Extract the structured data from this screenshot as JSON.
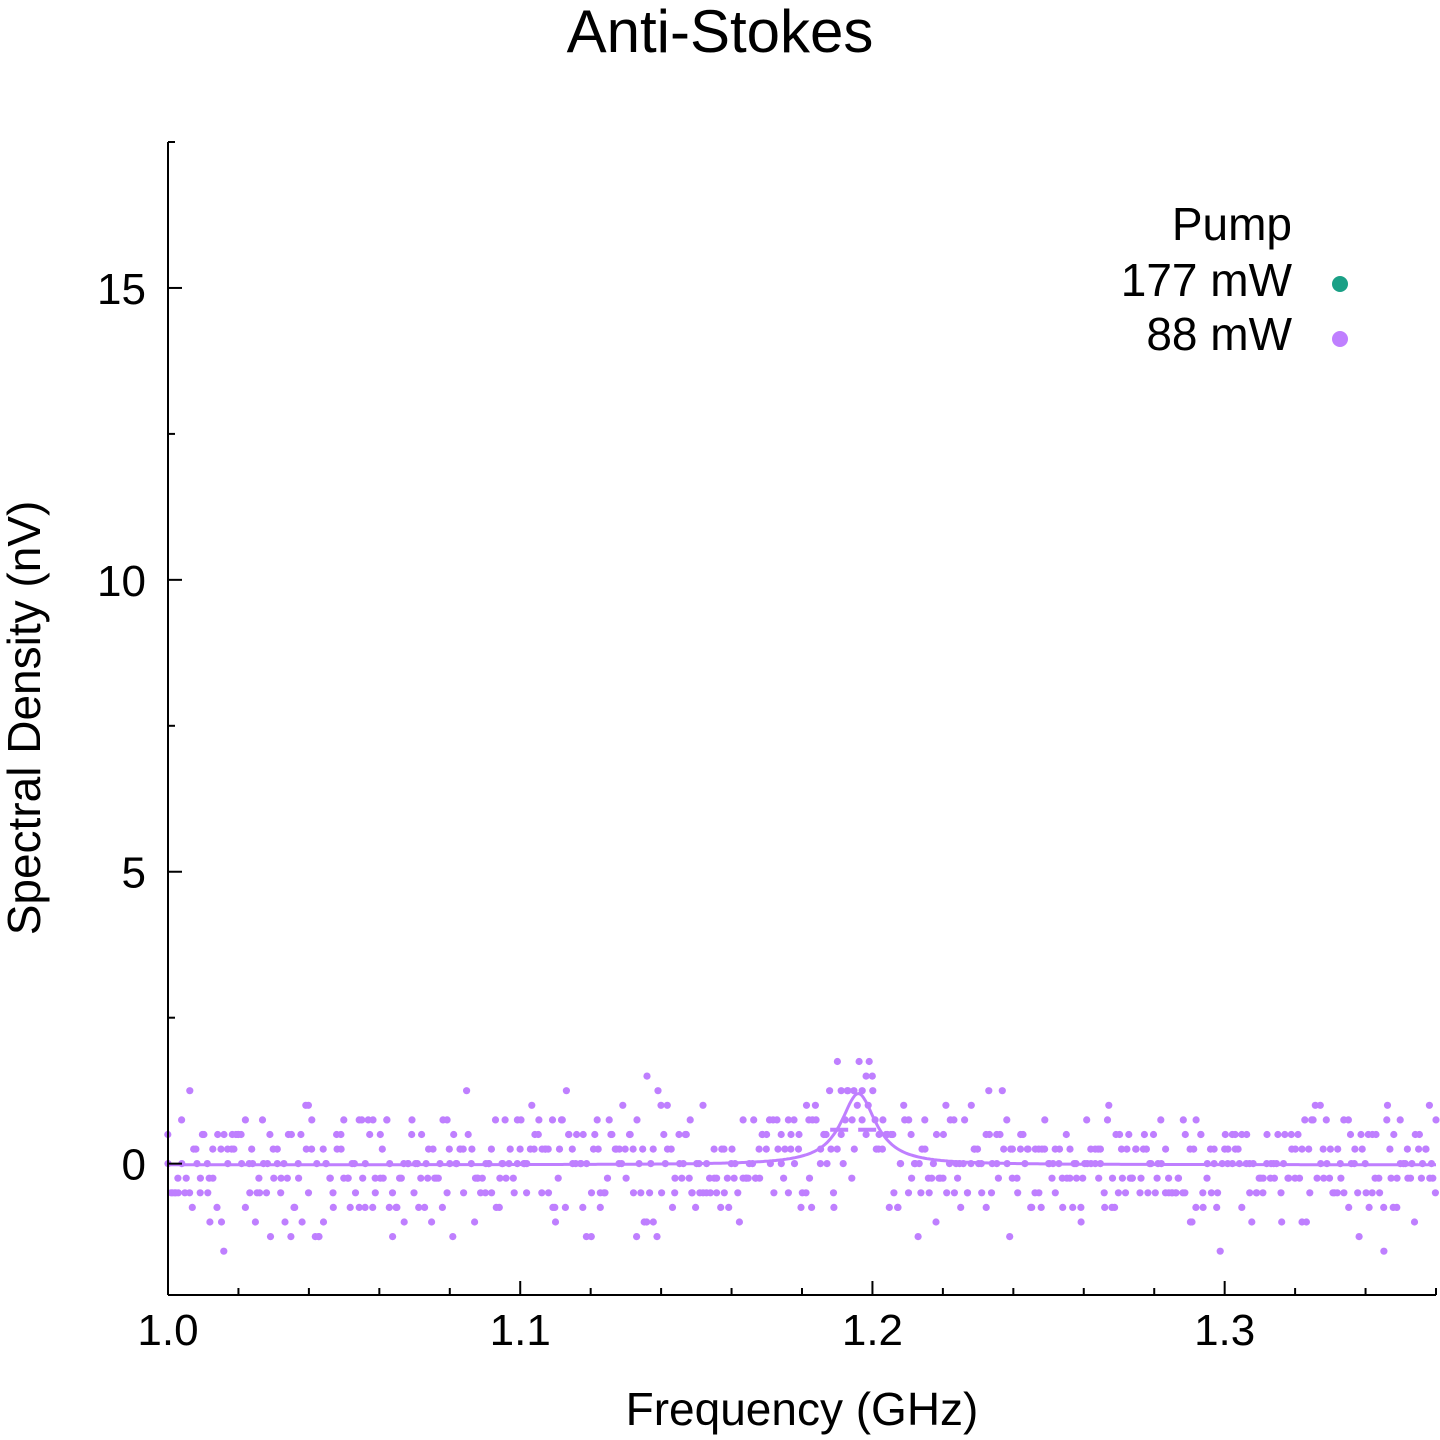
{
  "chart_data": {
    "type": "scatter",
    "title": "Anti-Stokes",
    "xlabel": "Frequency (GHz)",
    "ylabel": "Spectral Density (nV)",
    "xlim": [
      1.0,
      1.36
    ],
    "ylim": [
      -2.25,
      17.5
    ],
    "x_ticks": [
      1.0,
      1.1,
      1.2,
      1.3
    ],
    "x_tick_labels": [
      "1.0",
      "1.1",
      "1.2",
      "1.3"
    ],
    "y_ticks": [
      0,
      5,
      10,
      15
    ],
    "y_tick_labels": [
      "0",
      "5",
      "10",
      "15"
    ],
    "grid": false,
    "legend": {
      "title": "Pump",
      "placement": "top-right",
      "entries": [
        {
          "label": "177 mW",
          "color": "#1aa086"
        },
        {
          "label": "88 mW",
          "color": "#bf7fff"
        }
      ]
    },
    "series": [
      {
        "name": "177 mW",
        "color": "#1aa086",
        "points": []
      },
      {
        "name": "88 mW",
        "color": "#bf7fff",
        "points_x_range": [
          1.0,
          1.36
        ],
        "noise_band": [
          -1.35,
          1.5
        ],
        "fit": {
          "type": "lorentzian",
          "offset": -0.02,
          "amplitude": 1.22,
          "center": 1.196,
          "fwhm": 0.012
        },
        "fit_center_marker": {
          "x1": 1.188,
          "x2": 1.203,
          "y": 0.58
        }
      }
    ]
  }
}
